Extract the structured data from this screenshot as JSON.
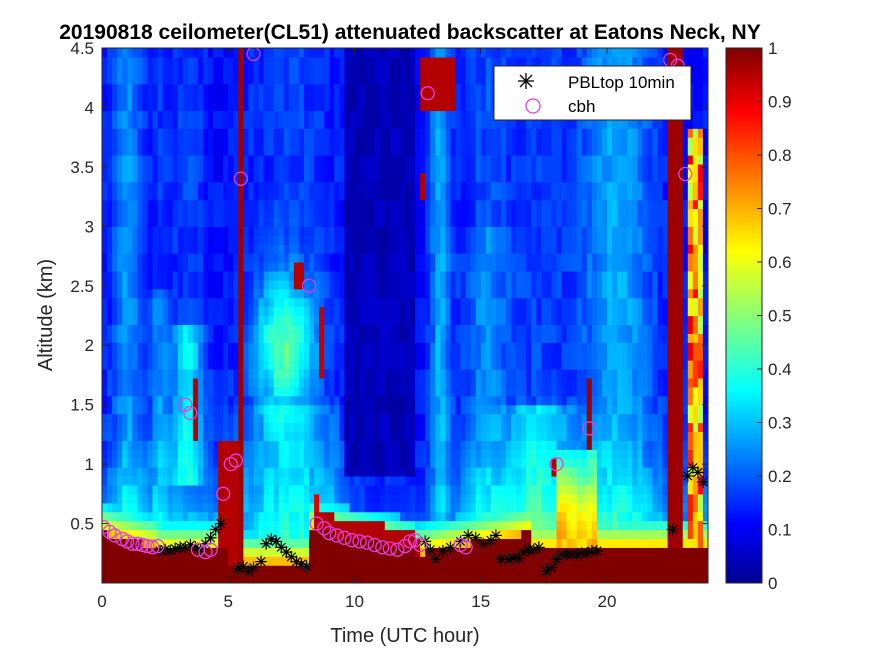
{
  "chart_data": {
    "type": "heatmap",
    "title": "20190818 ceilometer(CL51) attenuated backscatter at Eatons Neck, NY",
    "xlabel": "Time (UTC hour)",
    "ylabel": "Altitude (km)",
    "xlim": [
      0,
      24
    ],
    "ylim": [
      0,
      4.5
    ],
    "x_ticks": [
      0,
      5,
      10,
      15,
      20
    ],
    "y_ticks": [
      0.5,
      1,
      1.5,
      2,
      2.5,
      3,
      3.5,
      4,
      4.5
    ],
    "colorbar": {
      "range": [
        0,
        1
      ],
      "ticks": [
        0,
        0.1,
        0.2,
        0.3,
        0.4,
        0.5,
        0.6,
        0.7,
        0.8,
        0.9,
        1
      ],
      "colormap": "jet"
    },
    "legend": {
      "placement": "top-right",
      "entries": [
        "PBLtop 10min",
        "cbh"
      ]
    },
    "colors": {
      "pbl_marker": "#000000",
      "cbh_marker": "#e040e0",
      "low": "#00008f",
      "high": "#800000"
    },
    "series": [
      {
        "name": "PBLtop 10min",
        "marker": "asterisk",
        "points": [
          [
            2.3,
            0.27
          ],
          [
            2.5,
            0.28
          ],
          [
            2.7,
            0.27
          ],
          [
            2.9,
            0.29
          ],
          [
            3.1,
            0.3
          ],
          [
            3.3,
            0.3
          ],
          [
            3.5,
            0.32
          ],
          [
            3.7,
            0.3
          ],
          [
            3.9,
            0.28
          ],
          [
            4.1,
            0.33
          ],
          [
            4.3,
            0.38
          ],
          [
            4.5,
            0.45
          ],
          [
            4.7,
            0.5
          ],
          [
            5.4,
            0.12
          ],
          [
            5.6,
            0.14
          ],
          [
            5.8,
            0.1
          ],
          [
            6.0,
            0.13
          ],
          [
            6.3,
            0.18
          ],
          [
            6.5,
            0.33
          ],
          [
            6.7,
            0.37
          ],
          [
            6.9,
            0.35
          ],
          [
            7.1,
            0.3
          ],
          [
            7.3,
            0.26
          ],
          [
            7.5,
            0.22
          ],
          [
            7.7,
            0.18
          ],
          [
            7.9,
            0.16
          ],
          [
            8.1,
            0.14
          ],
          [
            12.8,
            0.35
          ],
          [
            13.0,
            0.28
          ],
          [
            13.2,
            0.2
          ],
          [
            13.5,
            0.27
          ],
          [
            13.8,
            0.3
          ],
          [
            14.2,
            0.35
          ],
          [
            14.5,
            0.4
          ],
          [
            14.8,
            0.38
          ],
          [
            15.1,
            0.33
          ],
          [
            15.4,
            0.36
          ],
          [
            15.6,
            0.4
          ],
          [
            15.8,
            0.2
          ],
          [
            16.1,
            0.2
          ],
          [
            16.3,
            0.21
          ],
          [
            16.5,
            0.21
          ],
          [
            16.7,
            0.26
          ],
          [
            16.9,
            0.28
          ],
          [
            17.1,
            0.28
          ],
          [
            17.3,
            0.3
          ],
          [
            17.6,
            0.1
          ],
          [
            17.8,
            0.13
          ],
          [
            18.0,
            0.2
          ],
          [
            18.2,
            0.24
          ],
          [
            18.4,
            0.24
          ],
          [
            18.6,
            0.24
          ],
          [
            18.8,
            0.24
          ],
          [
            19.0,
            0.25
          ],
          [
            19.2,
            0.25
          ],
          [
            19.4,
            0.27
          ],
          [
            19.6,
            0.27
          ],
          [
            22.6,
            0.45
          ],
          [
            23.2,
            0.9
          ],
          [
            23.4,
            0.97
          ],
          [
            23.6,
            0.93
          ],
          [
            23.8,
            0.85
          ]
        ]
      },
      {
        "name": "cbh",
        "marker": "circle",
        "points": [
          [
            0.05,
            0.47
          ],
          [
            0.3,
            0.43
          ],
          [
            0.5,
            0.4
          ],
          [
            0.8,
            0.37
          ],
          [
            1.0,
            0.35
          ],
          [
            1.2,
            0.33
          ],
          [
            1.4,
            0.33
          ],
          [
            1.6,
            0.32
          ],
          [
            1.8,
            0.31
          ],
          [
            2.0,
            0.3
          ],
          [
            2.2,
            0.31
          ],
          [
            3.3,
            1.5
          ],
          [
            3.5,
            1.43
          ],
          [
            3.8,
            0.28
          ],
          [
            4.1,
            0.26
          ],
          [
            4.3,
            0.28
          ],
          [
            4.8,
            0.75
          ],
          [
            5.1,
            1.0
          ],
          [
            5.3,
            1.03
          ],
          [
            5.5,
            3.4
          ],
          [
            6.0,
            4.45
          ],
          [
            8.2,
            2.5
          ],
          [
            8.5,
            0.5
          ],
          [
            8.8,
            0.46
          ],
          [
            9.0,
            0.42
          ],
          [
            9.3,
            0.4
          ],
          [
            9.6,
            0.38
          ],
          [
            9.9,
            0.36
          ],
          [
            10.2,
            0.35
          ],
          [
            10.5,
            0.34
          ],
          [
            10.8,
            0.32
          ],
          [
            11.1,
            0.3
          ],
          [
            11.4,
            0.29
          ],
          [
            11.7,
            0.28
          ],
          [
            12.0,
            0.31
          ],
          [
            12.2,
            0.35
          ],
          [
            12.4,
            0.36
          ],
          [
            12.6,
            0.32
          ],
          [
            12.9,
            4.12
          ],
          [
            14.2,
            0.32
          ],
          [
            14.4,
            0.3
          ],
          [
            18.0,
            1.0
          ],
          [
            19.3,
            1.3
          ],
          [
            22.5,
            4.4
          ],
          [
            22.8,
            4.35
          ],
          [
            23.1,
            3.44
          ]
        ]
      }
    ]
  }
}
